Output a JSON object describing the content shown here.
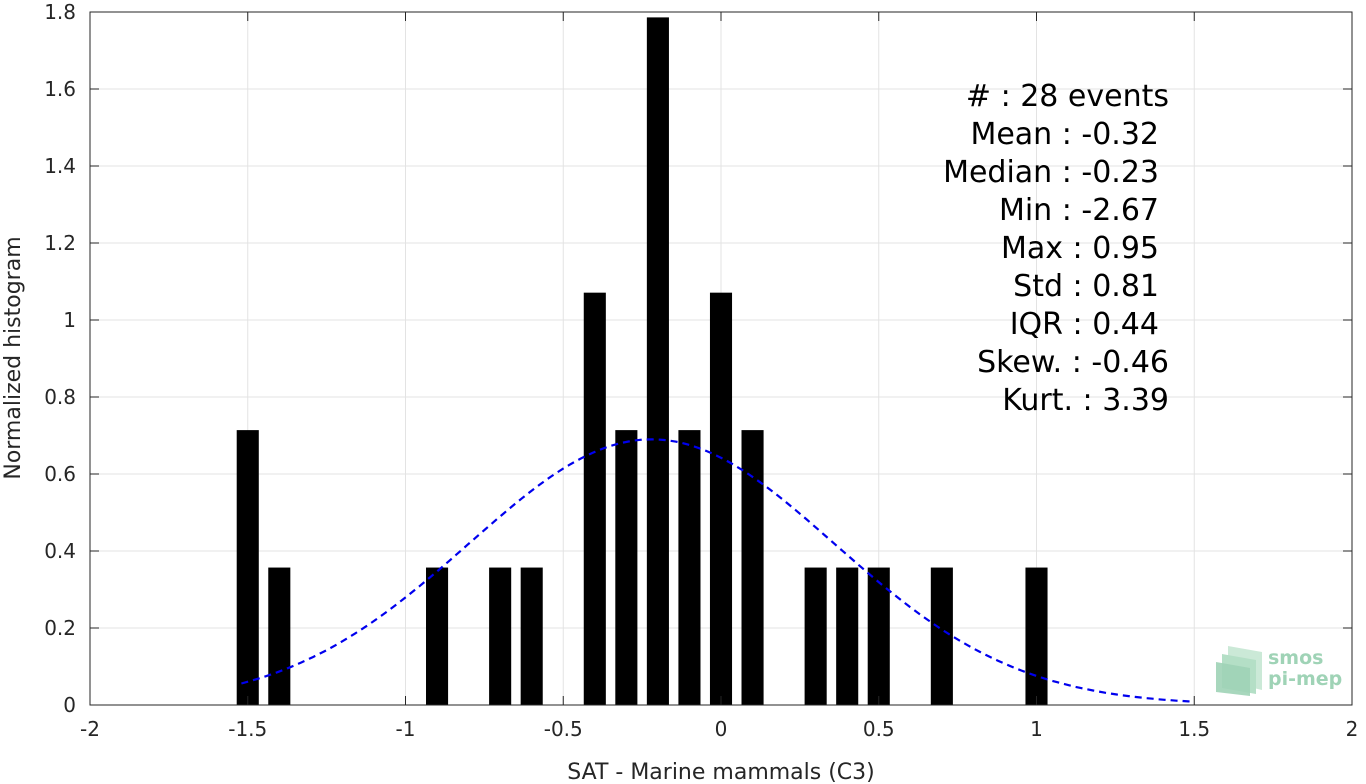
{
  "chart_data": {
    "type": "bar",
    "xlabel": "SAT - Marine mammals (C3)",
    "ylabel": "Normalized histogram",
    "xlim": [
      -2,
      2
    ],
    "ylim": [
      0,
      1.8
    ],
    "xticks": [
      "-2",
      "-1.5",
      "-1",
      "-0.5",
      "0",
      "0.5",
      "1",
      "1.5",
      "2"
    ],
    "yticks": [
      "0",
      "0.2",
      "0.4",
      "0.6",
      "0.8",
      "1",
      "1.2",
      "1.4",
      "1.6",
      "1.8"
    ],
    "grid": true,
    "bar_color": "#000000",
    "bins": [
      {
        "x": -1.5,
        "value": 0.714
      },
      {
        "x": -1.4,
        "value": 0.357
      },
      {
        "x": -0.9,
        "value": 0.357
      },
      {
        "x": -0.7,
        "value": 0.357
      },
      {
        "x": -0.6,
        "value": 0.357
      },
      {
        "x": -0.4,
        "value": 1.071
      },
      {
        "x": -0.3,
        "value": 0.714
      },
      {
        "x": -0.2,
        "value": 1.786
      },
      {
        "x": -0.1,
        "value": 0.714
      },
      {
        "x": 0.0,
        "value": 1.071
      },
      {
        "x": 0.1,
        "value": 0.714
      },
      {
        "x": 0.3,
        "value": 0.357
      },
      {
        "x": 0.4,
        "value": 0.357
      },
      {
        "x": 0.5,
        "value": 0.357
      },
      {
        "x": 0.7,
        "value": 0.357
      },
      {
        "x": 1.0,
        "value": 0.357
      }
    ],
    "fit_curve": {
      "style": "dashed",
      "color": "#0000ee",
      "x_range": [
        -1.52,
        1.5
      ],
      "mean": -0.22,
      "std": 0.58,
      "peak": 0.69
    },
    "stats": [
      "#  : 28 events",
      "Mean : -0.32",
      "Median : -0.23",
      "Min : -2.67",
      "Max : 0.95",
      "Std : 0.81",
      "IQR : 0.44",
      "Skew. : -0.46",
      "Kurt. : 3.39"
    ]
  },
  "logo": {
    "line1": "smos",
    "line2": "pi-mep",
    "color": "#9fd3b6"
  }
}
